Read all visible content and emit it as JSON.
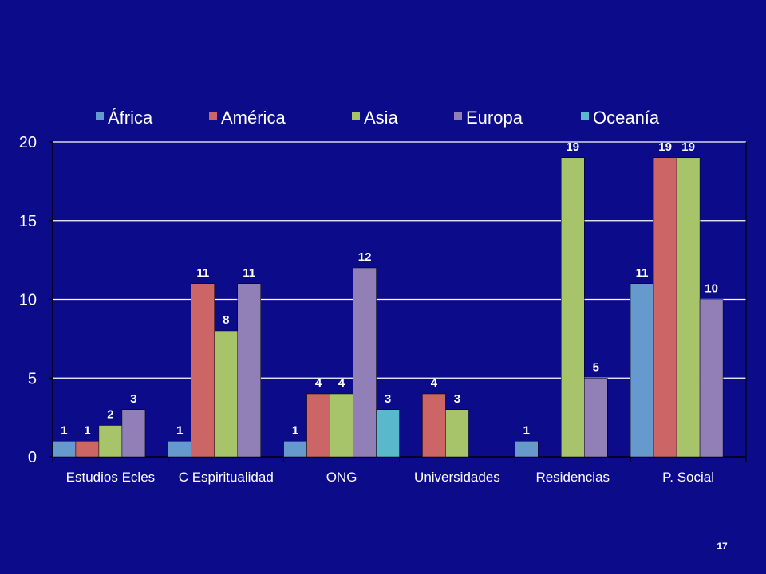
{
  "page_number": "17",
  "colors": {
    "background": "#0c0c8a",
    "grid": "#ffffff",
    "text": "#ffffff"
  },
  "chart_data": {
    "type": "bar",
    "title": "",
    "xlabel": "",
    "ylabel": "",
    "ylim": [
      0,
      20
    ],
    "yticks": [
      0,
      5,
      10,
      15,
      20
    ],
    "grid": true,
    "legend_position": "top",
    "categories": [
      "Estudios Ecles",
      "C Espiritualidad",
      "ONG",
      "Universidades",
      "Residencias",
      "P. Social"
    ],
    "series": [
      {
        "name": "África",
        "color": "#6699cc",
        "values": [
          1,
          1,
          1,
          null,
          1,
          11
        ]
      },
      {
        "name": "América",
        "color": "#cc6666",
        "values": [
          1,
          11,
          4,
          4,
          null,
          19
        ]
      },
      {
        "name": "Asia",
        "color": "#a8c46a",
        "values": [
          2,
          8,
          4,
          3,
          19,
          19
        ]
      },
      {
        "name": "Europa",
        "color": "#9180b8",
        "values": [
          3,
          11,
          12,
          null,
          5,
          10
        ]
      },
      {
        "name": "Oceanía",
        "color": "#5ab8cc",
        "values": [
          null,
          null,
          3,
          null,
          null,
          null
        ]
      }
    ]
  }
}
